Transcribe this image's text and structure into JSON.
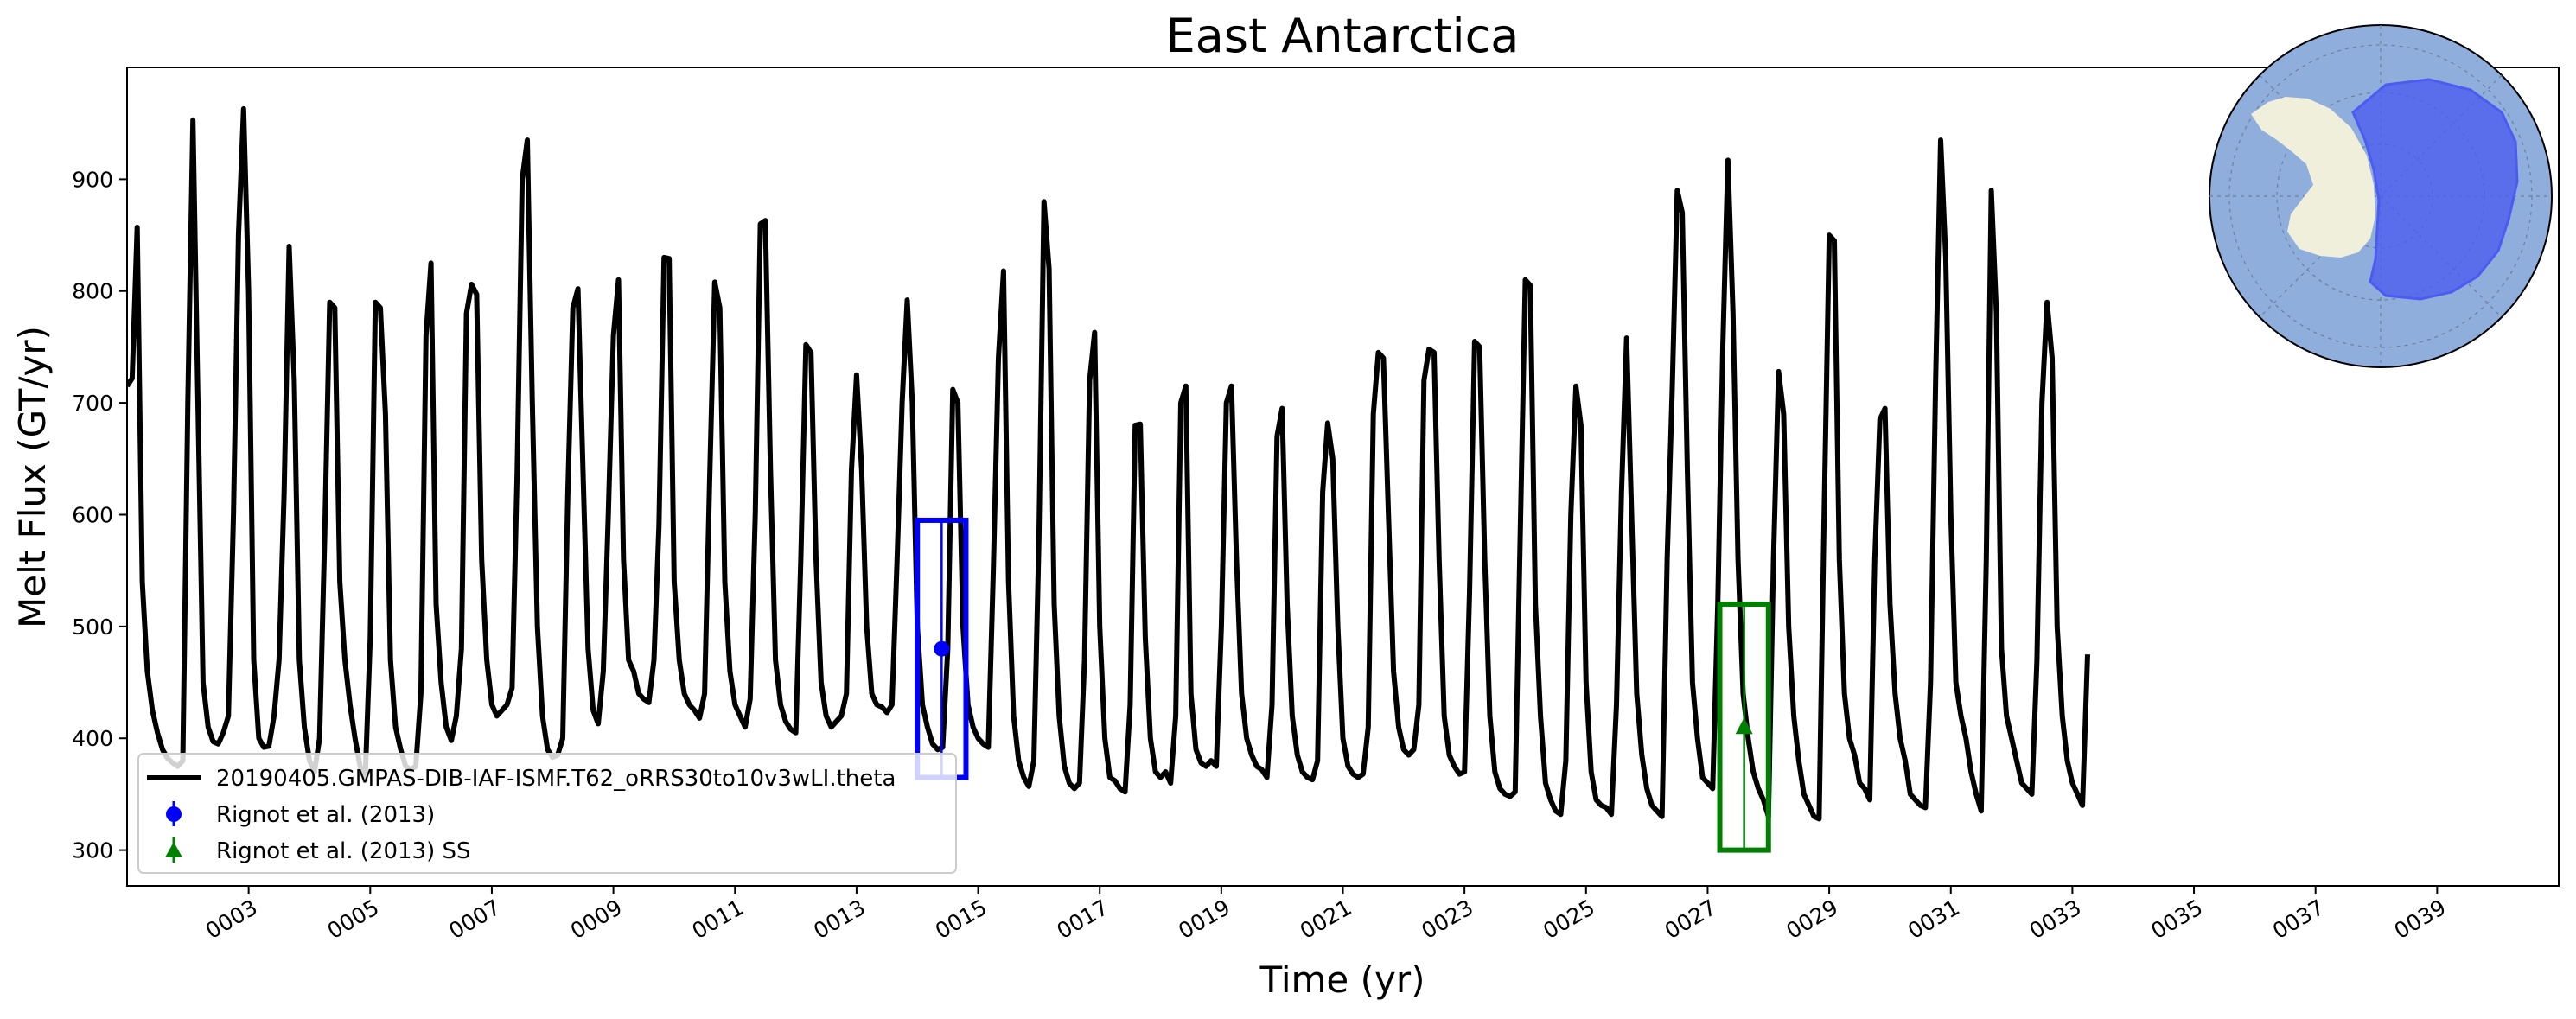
{
  "chart_data": {
    "type": "line",
    "title": "East Antarctica",
    "xlabel": "Time (yr)",
    "ylabel": "Melt Flux (GT/yr)",
    "xlim": [
      1.0,
      41.0
    ],
    "ylim": [
      268,
      1000
    ],
    "xticks": [
      3,
      5,
      7,
      9,
      11,
      13,
      15,
      17,
      19,
      21,
      23,
      25,
      27,
      29,
      31,
      33,
      35,
      37,
      39
    ],
    "xtick_labels": [
      "0003",
      "0005",
      "0007",
      "0009",
      "0011",
      "0013",
      "0015",
      "0017",
      "0019",
      "0021",
      "0023",
      "0025",
      "0027",
      "0029",
      "0031",
      "0033",
      "0035",
      "0037",
      "0039"
    ],
    "yticks": [
      300,
      400,
      500,
      600,
      700,
      800,
      900
    ],
    "ytick_labels": [
      "300",
      "400",
      "500",
      "600",
      "700",
      "800",
      "900"
    ],
    "legend_position": "lower-left",
    "series": [
      {
        "name": "20190405.GMPAS-DIB-IAF-ISMF.T62_oRRS30to10v3wLI.theta",
        "color": "#000000",
        "monthly_values": [
          715,
          722,
          857,
          540,
          460,
          425,
          405,
          390,
          382,
          378,
          375,
          380,
          700,
          953,
          700,
          450,
          410,
          397,
          395,
          405,
          420,
          600,
          850,
          963,
          800,
          470,
          400,
          392,
          393,
          420,
          470,
          620,
          840,
          720,
          470,
          410,
          380,
          370,
          400,
          580,
          790,
          785,
          540,
          470,
          430,
          400,
          375,
          362,
          490,
          790,
          785,
          690,
          470,
          410,
          390,
          375,
          372,
          375,
          440,
          760,
          825,
          520,
          450,
          410,
          398,
          420,
          480,
          780,
          806,
          797,
          560,
          470,
          430,
          420,
          425,
          430,
          445,
          640,
          900,
          935,
          700,
          500,
          420,
          390,
          383,
          385,
          400,
          620,
          785,
          802,
          640,
          480,
          425,
          413,
          460,
          600,
          760,
          810,
          560,
          470,
          460,
          440,
          435,
          432,
          470,
          590,
          830,
          829,
          540,
          470,
          440,
          430,
          425,
          418,
          440,
          630,
          808,
          785,
          540,
          460,
          430,
          420,
          410,
          435,
          600,
          860,
          863,
          640,
          470,
          430,
          415,
          408,
          405,
          560,
          752,
          745,
          560,
          450,
          420,
          410,
          415,
          420,
          440,
          640,
          725,
          640,
          500,
          440,
          430,
          428,
          423,
          430,
          560,
          700,
          792,
          700,
          500,
          430,
          410,
          395,
          390,
          392,
          480,
          712,
          700,
          500,
          430,
          410,
          400,
          395,
          392,
          550,
          740,
          818,
          540,
          420,
          380,
          365,
          357,
          380,
          580,
          880,
          820,
          520,
          420,
          375,
          360,
          355,
          360,
          470,
          720,
          763,
          500,
          400,
          365,
          362,
          355,
          352,
          430,
          680,
          681,
          490,
          400,
          370,
          365,
          370,
          360,
          420,
          700,
          715,
          440,
          390,
          378,
          375,
          380,
          375,
          500,
          700,
          715,
          560,
          440,
          400,
          385,
          375,
          372,
          365,
          430,
          670,
          695,
          520,
          420,
          385,
          370,
          365,
          363,
          380,
          620,
          682,
          650,
          500,
          400,
          375,
          368,
          365,
          368,
          410,
          690,
          745,
          740,
          600,
          460,
          410,
          390,
          385,
          390,
          430,
          720,
          748,
          745,
          560,
          420,
          385,
          375,
          368,
          370,
          530,
          755,
          750,
          560,
          420,
          370,
          355,
          350,
          348,
          352,
          580,
          810,
          805,
          520,
          420,
          360,
          345,
          335,
          332,
          380,
          600,
          715,
          680,
          450,
          370,
          345,
          340,
          338,
          332,
          430,
          620,
          758,
          600,
          440,
          385,
          355,
          340,
          335,
          330,
          560,
          710,
          890,
          870,
          640,
          450,
          400,
          365,
          360,
          355,
          520,
          750,
          917,
          780,
          560,
          440,
          400,
          370,
          355,
          345,
          330,
          560,
          728,
          690,
          500,
          420,
          380,
          350,
          340,
          330,
          328,
          600,
          850,
          845,
          560,
          440,
          400,
          385,
          360,
          355,
          345,
          560,
          685,
          695,
          520,
          440,
          400,
          380,
          350,
          345,
          340,
          338,
          450,
          720,
          935,
          830,
          600,
          450,
          420,
          400,
          370,
          350,
          335,
          560,
          890,
          780,
          480,
          420,
          400,
          380,
          360,
          355,
          350,
          470,
          700,
          790,
          740,
          500,
          420,
          380,
          360,
          350,
          340,
          475
        ]
      }
    ],
    "observations": [
      {
        "name": "Rignot et al. (2013)",
        "marker": "circle",
        "color": "#0000ff",
        "x": 14.4,
        "y": 480,
        "box_x": [
          14.0,
          14.8
        ],
        "box_y": [
          365,
          595
        ]
      },
      {
        "name": "Rignot et al. (2013) SS",
        "marker": "triangle",
        "color": "#008000",
        "x": 27.6,
        "y": 410,
        "box_x": [
          27.2,
          28.0
        ],
        "box_y": [
          300,
          520
        ]
      }
    ],
    "inset_map": {
      "ocean_color": "#8faedc",
      "land_color": "#efefdc",
      "region_color": "#4c5cf0"
    }
  }
}
